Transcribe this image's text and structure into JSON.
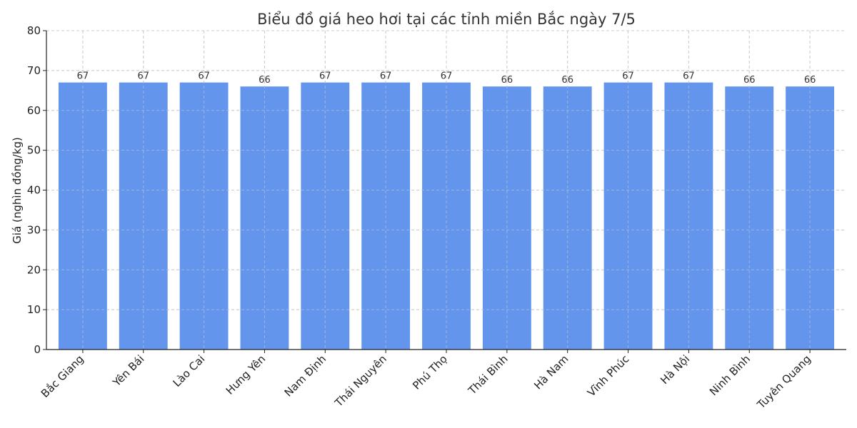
{
  "chart_data": {
    "type": "bar",
    "title": "Biểu đồ giá heo hơi tại các tỉnh miền Bắc ngày 7/5",
    "xlabel": "",
    "ylabel": "Giá (nghìn đồng/kg)",
    "ylim": [
      0,
      80
    ],
    "yticks": [
      0,
      10,
      20,
      30,
      40,
      50,
      60,
      70,
      80
    ],
    "grid": true,
    "categories": [
      "Bắc Giang",
      "Yên Bái",
      "Lào Cai",
      "Hưng Yên",
      "Nam Định",
      "Thái Nguyên",
      "Phú Thọ",
      "Thái Bình",
      "Hà Nam",
      "Vĩnh Phúc",
      "Hà Nội",
      "Ninh Bình",
      "Tuyên Quang"
    ],
    "values": [
      67,
      67,
      67,
      66,
      67,
      67,
      67,
      66,
      66,
      67,
      67,
      66,
      66
    ],
    "bar_color": "#6495ED"
  }
}
